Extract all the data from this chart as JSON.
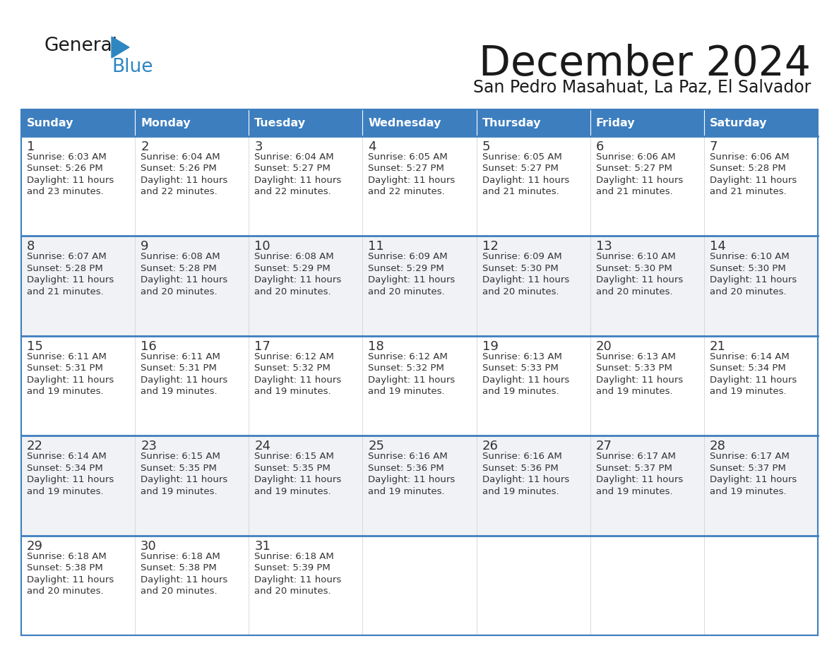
{
  "title": "December 2024",
  "subtitle": "San Pedro Masahuat, La Paz, El Salvador",
  "header_color": "#3d7ebf",
  "header_text_color": "#ffffff",
  "cell_bg_white": "#ffffff",
  "cell_bg_gray": "#f0f2f5",
  "day_names": [
    "Sunday",
    "Monday",
    "Tuesday",
    "Wednesday",
    "Thursday",
    "Friday",
    "Saturday"
  ],
  "weeks": [
    [
      {
        "day": 1,
        "sunrise": "6:03 AM",
        "sunset": "5:26 PM",
        "dl1": "Daylight: 11 hours",
        "dl2": "and 23 minutes."
      },
      {
        "day": 2,
        "sunrise": "6:04 AM",
        "sunset": "5:26 PM",
        "dl1": "Daylight: 11 hours",
        "dl2": "and 22 minutes."
      },
      {
        "day": 3,
        "sunrise": "6:04 AM",
        "sunset": "5:27 PM",
        "dl1": "Daylight: 11 hours",
        "dl2": "and 22 minutes."
      },
      {
        "day": 4,
        "sunrise": "6:05 AM",
        "sunset": "5:27 PM",
        "dl1": "Daylight: 11 hours",
        "dl2": "and 22 minutes."
      },
      {
        "day": 5,
        "sunrise": "6:05 AM",
        "sunset": "5:27 PM",
        "dl1": "Daylight: 11 hours",
        "dl2": "and 21 minutes."
      },
      {
        "day": 6,
        "sunrise": "6:06 AM",
        "sunset": "5:27 PM",
        "dl1": "Daylight: 11 hours",
        "dl2": "and 21 minutes."
      },
      {
        "day": 7,
        "sunrise": "6:06 AM",
        "sunset": "5:28 PM",
        "dl1": "Daylight: 11 hours",
        "dl2": "and 21 minutes."
      }
    ],
    [
      {
        "day": 8,
        "sunrise": "6:07 AM",
        "sunset": "5:28 PM",
        "dl1": "Daylight: 11 hours",
        "dl2": "and 21 minutes."
      },
      {
        "day": 9,
        "sunrise": "6:08 AM",
        "sunset": "5:28 PM",
        "dl1": "Daylight: 11 hours",
        "dl2": "and 20 minutes."
      },
      {
        "day": 10,
        "sunrise": "6:08 AM",
        "sunset": "5:29 PM",
        "dl1": "Daylight: 11 hours",
        "dl2": "and 20 minutes."
      },
      {
        "day": 11,
        "sunrise": "6:09 AM",
        "sunset": "5:29 PM",
        "dl1": "Daylight: 11 hours",
        "dl2": "and 20 minutes."
      },
      {
        "day": 12,
        "sunrise": "6:09 AM",
        "sunset": "5:30 PM",
        "dl1": "Daylight: 11 hours",
        "dl2": "and 20 minutes."
      },
      {
        "day": 13,
        "sunrise": "6:10 AM",
        "sunset": "5:30 PM",
        "dl1": "Daylight: 11 hours",
        "dl2": "and 20 minutes."
      },
      {
        "day": 14,
        "sunrise": "6:10 AM",
        "sunset": "5:30 PM",
        "dl1": "Daylight: 11 hours",
        "dl2": "and 20 minutes."
      }
    ],
    [
      {
        "day": 15,
        "sunrise": "6:11 AM",
        "sunset": "5:31 PM",
        "dl1": "Daylight: 11 hours",
        "dl2": "and 19 minutes."
      },
      {
        "day": 16,
        "sunrise": "6:11 AM",
        "sunset": "5:31 PM",
        "dl1": "Daylight: 11 hours",
        "dl2": "and 19 minutes."
      },
      {
        "day": 17,
        "sunrise": "6:12 AM",
        "sunset": "5:32 PM",
        "dl1": "Daylight: 11 hours",
        "dl2": "and 19 minutes."
      },
      {
        "day": 18,
        "sunrise": "6:12 AM",
        "sunset": "5:32 PM",
        "dl1": "Daylight: 11 hours",
        "dl2": "and 19 minutes."
      },
      {
        "day": 19,
        "sunrise": "6:13 AM",
        "sunset": "5:33 PM",
        "dl1": "Daylight: 11 hours",
        "dl2": "and 19 minutes."
      },
      {
        "day": 20,
        "sunrise": "6:13 AM",
        "sunset": "5:33 PM",
        "dl1": "Daylight: 11 hours",
        "dl2": "and 19 minutes."
      },
      {
        "day": 21,
        "sunrise": "6:14 AM",
        "sunset": "5:34 PM",
        "dl1": "Daylight: 11 hours",
        "dl2": "and 19 minutes."
      }
    ],
    [
      {
        "day": 22,
        "sunrise": "6:14 AM",
        "sunset": "5:34 PM",
        "dl1": "Daylight: 11 hours",
        "dl2": "and 19 minutes."
      },
      {
        "day": 23,
        "sunrise": "6:15 AM",
        "sunset": "5:35 PM",
        "dl1": "Daylight: 11 hours",
        "dl2": "and 19 minutes."
      },
      {
        "day": 24,
        "sunrise": "6:15 AM",
        "sunset": "5:35 PM",
        "dl1": "Daylight: 11 hours",
        "dl2": "and 19 minutes."
      },
      {
        "day": 25,
        "sunrise": "6:16 AM",
        "sunset": "5:36 PM",
        "dl1": "Daylight: 11 hours",
        "dl2": "and 19 minutes."
      },
      {
        "day": 26,
        "sunrise": "6:16 AM",
        "sunset": "5:36 PM",
        "dl1": "Daylight: 11 hours",
        "dl2": "and 19 minutes."
      },
      {
        "day": 27,
        "sunrise": "6:17 AM",
        "sunset": "5:37 PM",
        "dl1": "Daylight: 11 hours",
        "dl2": "and 19 minutes."
      },
      {
        "day": 28,
        "sunrise": "6:17 AM",
        "sunset": "5:37 PM",
        "dl1": "Daylight: 11 hours",
        "dl2": "and 19 minutes."
      }
    ],
    [
      {
        "day": 29,
        "sunrise": "6:18 AM",
        "sunset": "5:38 PM",
        "dl1": "Daylight: 11 hours",
        "dl2": "and 20 minutes."
      },
      {
        "day": 30,
        "sunrise": "6:18 AM",
        "sunset": "5:38 PM",
        "dl1": "Daylight: 11 hours",
        "dl2": "and 20 minutes."
      },
      {
        "day": 31,
        "sunrise": "6:18 AM",
        "sunset": "5:39 PM",
        "dl1": "Daylight: 11 hours",
        "dl2": "and 20 minutes."
      },
      null,
      null,
      null,
      null
    ]
  ],
  "border_color": "#3d7ebf",
  "row_separator_color": "#3d7ebf",
  "text_color": "#333333",
  "day_num_color": "#333333",
  "logo_general_color": "#1a1a1a",
  "logo_blue_color": "#2e86c1",
  "logo_tri_color": "#2e86c1",
  "title_color": "#1a1a1a",
  "subtitle_color": "#1a1a1a"
}
